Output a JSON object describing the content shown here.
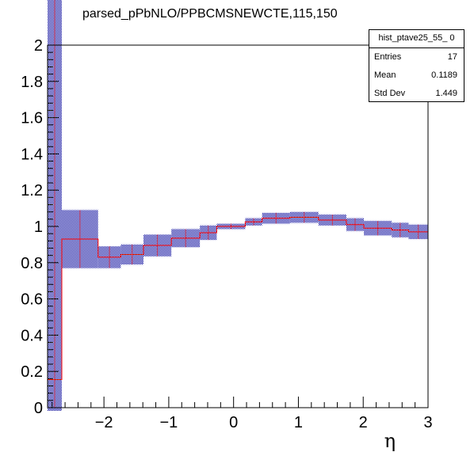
{
  "title": "parsed_pPbNLO/PPBCMSNEWCTE,115,150",
  "stats_box": {
    "name": "hist_ptave25_55_ 0",
    "rows": [
      {
        "key": "Entries",
        "value": "17"
      },
      {
        "key": "Mean",
        "value": "0.1189"
      },
      {
        "key": "Std Dev",
        "value": "1.449"
      }
    ]
  },
  "chart_data": {
    "type": "histogram",
    "xlabel": "η",
    "ylabel": "",
    "xlim": [
      -2.87,
      3.0
    ],
    "ylim": [
      0,
      2.0
    ],
    "x_ticks": [
      -2,
      -1,
      0,
      1,
      2,
      3
    ],
    "x_tick_labels": [
      "−2",
      "−1",
      "0",
      "1",
      "2",
      "3"
    ],
    "y_ticks": [
      0,
      0.2,
      0.4,
      0.6,
      0.8,
      1,
      1.2,
      1.4,
      1.6,
      1.8,
      2
    ],
    "y_tick_labels": [
      "0",
      "0.2",
      "0.4",
      "0.6",
      "0.8",
      "1",
      "1.2",
      "1.4",
      "1.6",
      "1.8",
      "2"
    ],
    "line_color": "#ff0000",
    "error_color": "#000099",
    "bins": [
      {
        "x0": -2.87,
        "x1": -2.65,
        "y": 0.155,
        "err": 3.0
      },
      {
        "x0": -2.65,
        "x1": -2.09,
        "y": 0.93,
        "err": 0.16
      },
      {
        "x0": -2.09,
        "x1": -1.74,
        "y": 0.83,
        "err": 0.06
      },
      {
        "x0": -1.74,
        "x1": -1.39,
        "y": 0.845,
        "err": 0.055
      },
      {
        "x0": -1.39,
        "x1": -0.96,
        "y": 0.895,
        "err": 0.06
      },
      {
        "x0": -0.96,
        "x1": -0.52,
        "y": 0.935,
        "err": 0.05
      },
      {
        "x0": -0.52,
        "x1": -0.26,
        "y": 0.965,
        "err": 0.04
      },
      {
        "x0": -0.26,
        "x1": 0.18,
        "y": 1.0,
        "err": 0.015
      },
      {
        "x0": 0.18,
        "x1": 0.44,
        "y": 1.025,
        "err": 0.02
      },
      {
        "x0": 0.44,
        "x1": 0.87,
        "y": 1.045,
        "err": 0.03
      },
      {
        "x0": 0.87,
        "x1": 1.31,
        "y": 1.05,
        "err": 0.03
      },
      {
        "x0": 1.31,
        "x1": 1.74,
        "y": 1.035,
        "err": 0.03
      },
      {
        "x0": 1.74,
        "x1": 2.01,
        "y": 1.01,
        "err": 0.035
      },
      {
        "x0": 2.01,
        "x1": 2.44,
        "y": 0.99,
        "err": 0.04
      },
      {
        "x0": 2.44,
        "x1": 2.7,
        "y": 0.98,
        "err": 0.04
      },
      {
        "x0": 2.7,
        "x1": 3.0,
        "y": 0.97,
        "err": 0.04
      }
    ]
  }
}
